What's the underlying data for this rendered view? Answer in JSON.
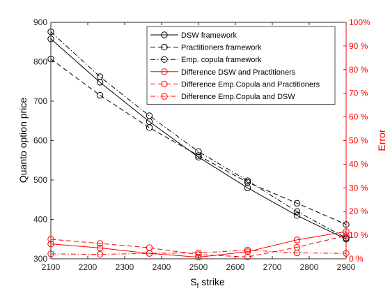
{
  "chart_data": {
    "type": "line",
    "xlabel": "S",
    "xlabel_sub": "f",
    "xlabel_rest": " strike",
    "ylabel_left": "Quanto option price",
    "ylabel_right": "Error",
    "x": [
      2100,
      2233,
      2367,
      2500,
      2633,
      2767,
      2900
    ],
    "xlim": [
      2100,
      2900
    ],
    "xticks": [
      2100,
      2200,
      2300,
      2400,
      2500,
      2600,
      2700,
      2800,
      2900
    ],
    "ylim_left": [
      300,
      900
    ],
    "yticks_left": [
      300,
      400,
      500,
      600,
      700,
      800,
      900
    ],
    "ylim_right": [
      0,
      100
    ],
    "yticks_right": [
      "0 %",
      "10 %",
      "20 %",
      "30 %",
      "40 %",
      "50 %",
      "60 %",
      "70 %",
      "80 %",
      "90 %",
      "100%"
    ],
    "grid": false,
    "legend_position": "top-right",
    "colors": {
      "price": "#000000",
      "error": "#ff0000"
    },
    "series": [
      {
        "name": "DSW framework",
        "axis": "left",
        "color": "#000000",
        "dash": "solid",
        "values": [
          858,
          748,
          648,
          558,
          480,
          410,
          350
        ]
      },
      {
        "name": "Practitioners framework",
        "axis": "left",
        "color": "#000000",
        "dash": "dashed",
        "values": [
          807,
          715,
          633,
          562,
          494,
          441,
          387
        ]
      },
      {
        "name": "Emp. copula framework",
        "axis": "left",
        "color": "#000000",
        "dash": "dashdot",
        "values": [
          876,
          762,
          663,
          572,
          498,
          420,
          353
        ]
      },
      {
        "name": "Difference DSW and Practitioners",
        "axis": "right",
        "color": "#ff0000",
        "dash": "solid",
        "values": [
          6.3,
          4.6,
          2.3,
          0.7,
          3.0,
          8.0,
          11.5
        ]
      },
      {
        "name": "Difference Emp.Copula and Practitioners",
        "axis": "right",
        "color": "#ff0000",
        "dash": "dashed",
        "values": [
          8.3,
          6.5,
          4.7,
          1.8,
          0.8,
          4.9,
          9.8
        ]
      },
      {
        "name": "Difference Emp.Copula and DSW",
        "axis": "right",
        "color": "#ff0000",
        "dash": "dashdot",
        "values": [
          2.1,
          1.9,
          2.3,
          2.5,
          3.7,
          2.5,
          2.3
        ]
      }
    ]
  }
}
